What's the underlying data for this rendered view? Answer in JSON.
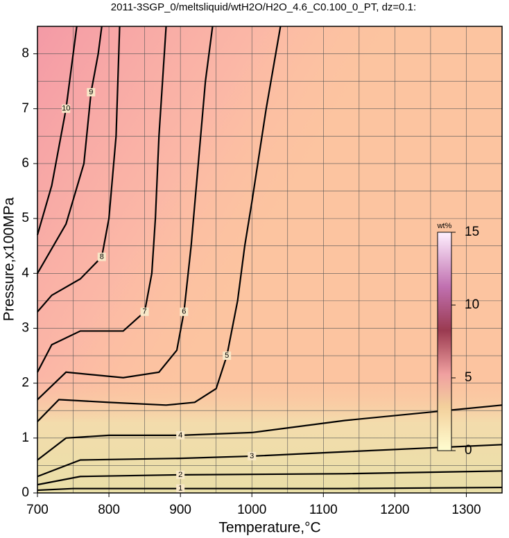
{
  "chart_data": {
    "type": "contour",
    "title": "2011-3SGP_0/meltsliquid/wtH2O/H2O_4.6_C0.100_0_PT, dz=0.1:",
    "x_label": "Temperature,°C",
    "y_label": "Pressure,x100MPa",
    "xlim": [
      700,
      1350
    ],
    "ylim": [
      0,
      8.5
    ],
    "xticks": [
      700,
      800,
      900,
      1000,
      1100,
      1200,
      1300
    ],
    "yticks": [
      0,
      1,
      2,
      3,
      4,
      5,
      6,
      7,
      8
    ],
    "xgrid": [
      750,
      800,
      850,
      900,
      950,
      1000,
      1050,
      1100,
      1150,
      1200,
      1250,
      1300
    ],
    "ygrid": [
      0.5,
      1,
      1.5,
      2,
      2.5,
      3,
      3.5,
      4,
      4.5,
      5,
      5.5,
      6,
      6.5,
      7,
      7.5,
      8
    ],
    "colorbar": {
      "label": "wt%",
      "lim": [
        0,
        15
      ],
      "ticks": [
        0,
        5,
        10,
        15
      ]
    },
    "contours": [
      {
        "level": 1,
        "x": [
          700,
          750,
          900,
          1130,
          1350
        ],
        "y": [
          0.05,
          0.08,
          0.08,
          0.08,
          0.1
        ]
      },
      {
        "level": 2,
        "x": [
          700,
          760,
          900,
          1130,
          1350
        ],
        "y": [
          0.15,
          0.3,
          0.33,
          0.35,
          0.4
        ]
      },
      {
        "level": 3,
        "x": [
          700,
          760,
          900,
          1000,
          1130,
          1350
        ],
        "y": [
          0.3,
          0.6,
          0.63,
          0.67,
          0.75,
          0.88
        ]
      },
      {
        "level": 4,
        "x": [
          700,
          740,
          800,
          900,
          1000,
          1130,
          1350
        ],
        "y": [
          0.6,
          1.0,
          1.05,
          1.05,
          1.1,
          1.32,
          1.6
        ]
      },
      {
        "level": 5,
        "x": [
          700,
          730,
          800,
          880,
          920,
          950,
          965,
          980,
          990,
          1000,
          1020,
          1040
        ],
        "y": [
          1.3,
          1.7,
          1.65,
          1.6,
          1.65,
          1.9,
          2.5,
          3.5,
          4.5,
          5.3,
          7,
          8.5
        ]
      },
      {
        "level": 6,
        "x": [
          700,
          740,
          820,
          870,
          895,
          905,
          915,
          925,
          935,
          945
        ],
        "y": [
          1.7,
          2.2,
          2.1,
          2.2,
          2.6,
          3.3,
          4.5,
          6,
          7.5,
          8.5
        ]
      },
      {
        "level": 7,
        "x": [
          700,
          720,
          760,
          820,
          850,
          860,
          865,
          870,
          880
        ],
        "y": [
          2.2,
          2.7,
          2.95,
          2.95,
          3.3,
          4,
          5,
          6.5,
          8.5
        ]
      },
      {
        "level": 8,
        "x": [
          700,
          720,
          760,
          790,
          800,
          810,
          815
        ],
        "y": [
          3.3,
          3.6,
          3.9,
          4.3,
          5,
          6.5,
          8.5
        ]
      },
      {
        "level": 9,
        "x": [
          700,
          740,
          765,
          775,
          785,
          790
        ],
        "y": [
          4,
          4.9,
          6,
          7.3,
          8,
          8.5
        ]
      },
      {
        "level": 10,
        "x": [
          700,
          720,
          740,
          750,
          755
        ],
        "y": [
          4.7,
          5.6,
          7,
          8,
          8.5
        ]
      }
    ]
  }
}
